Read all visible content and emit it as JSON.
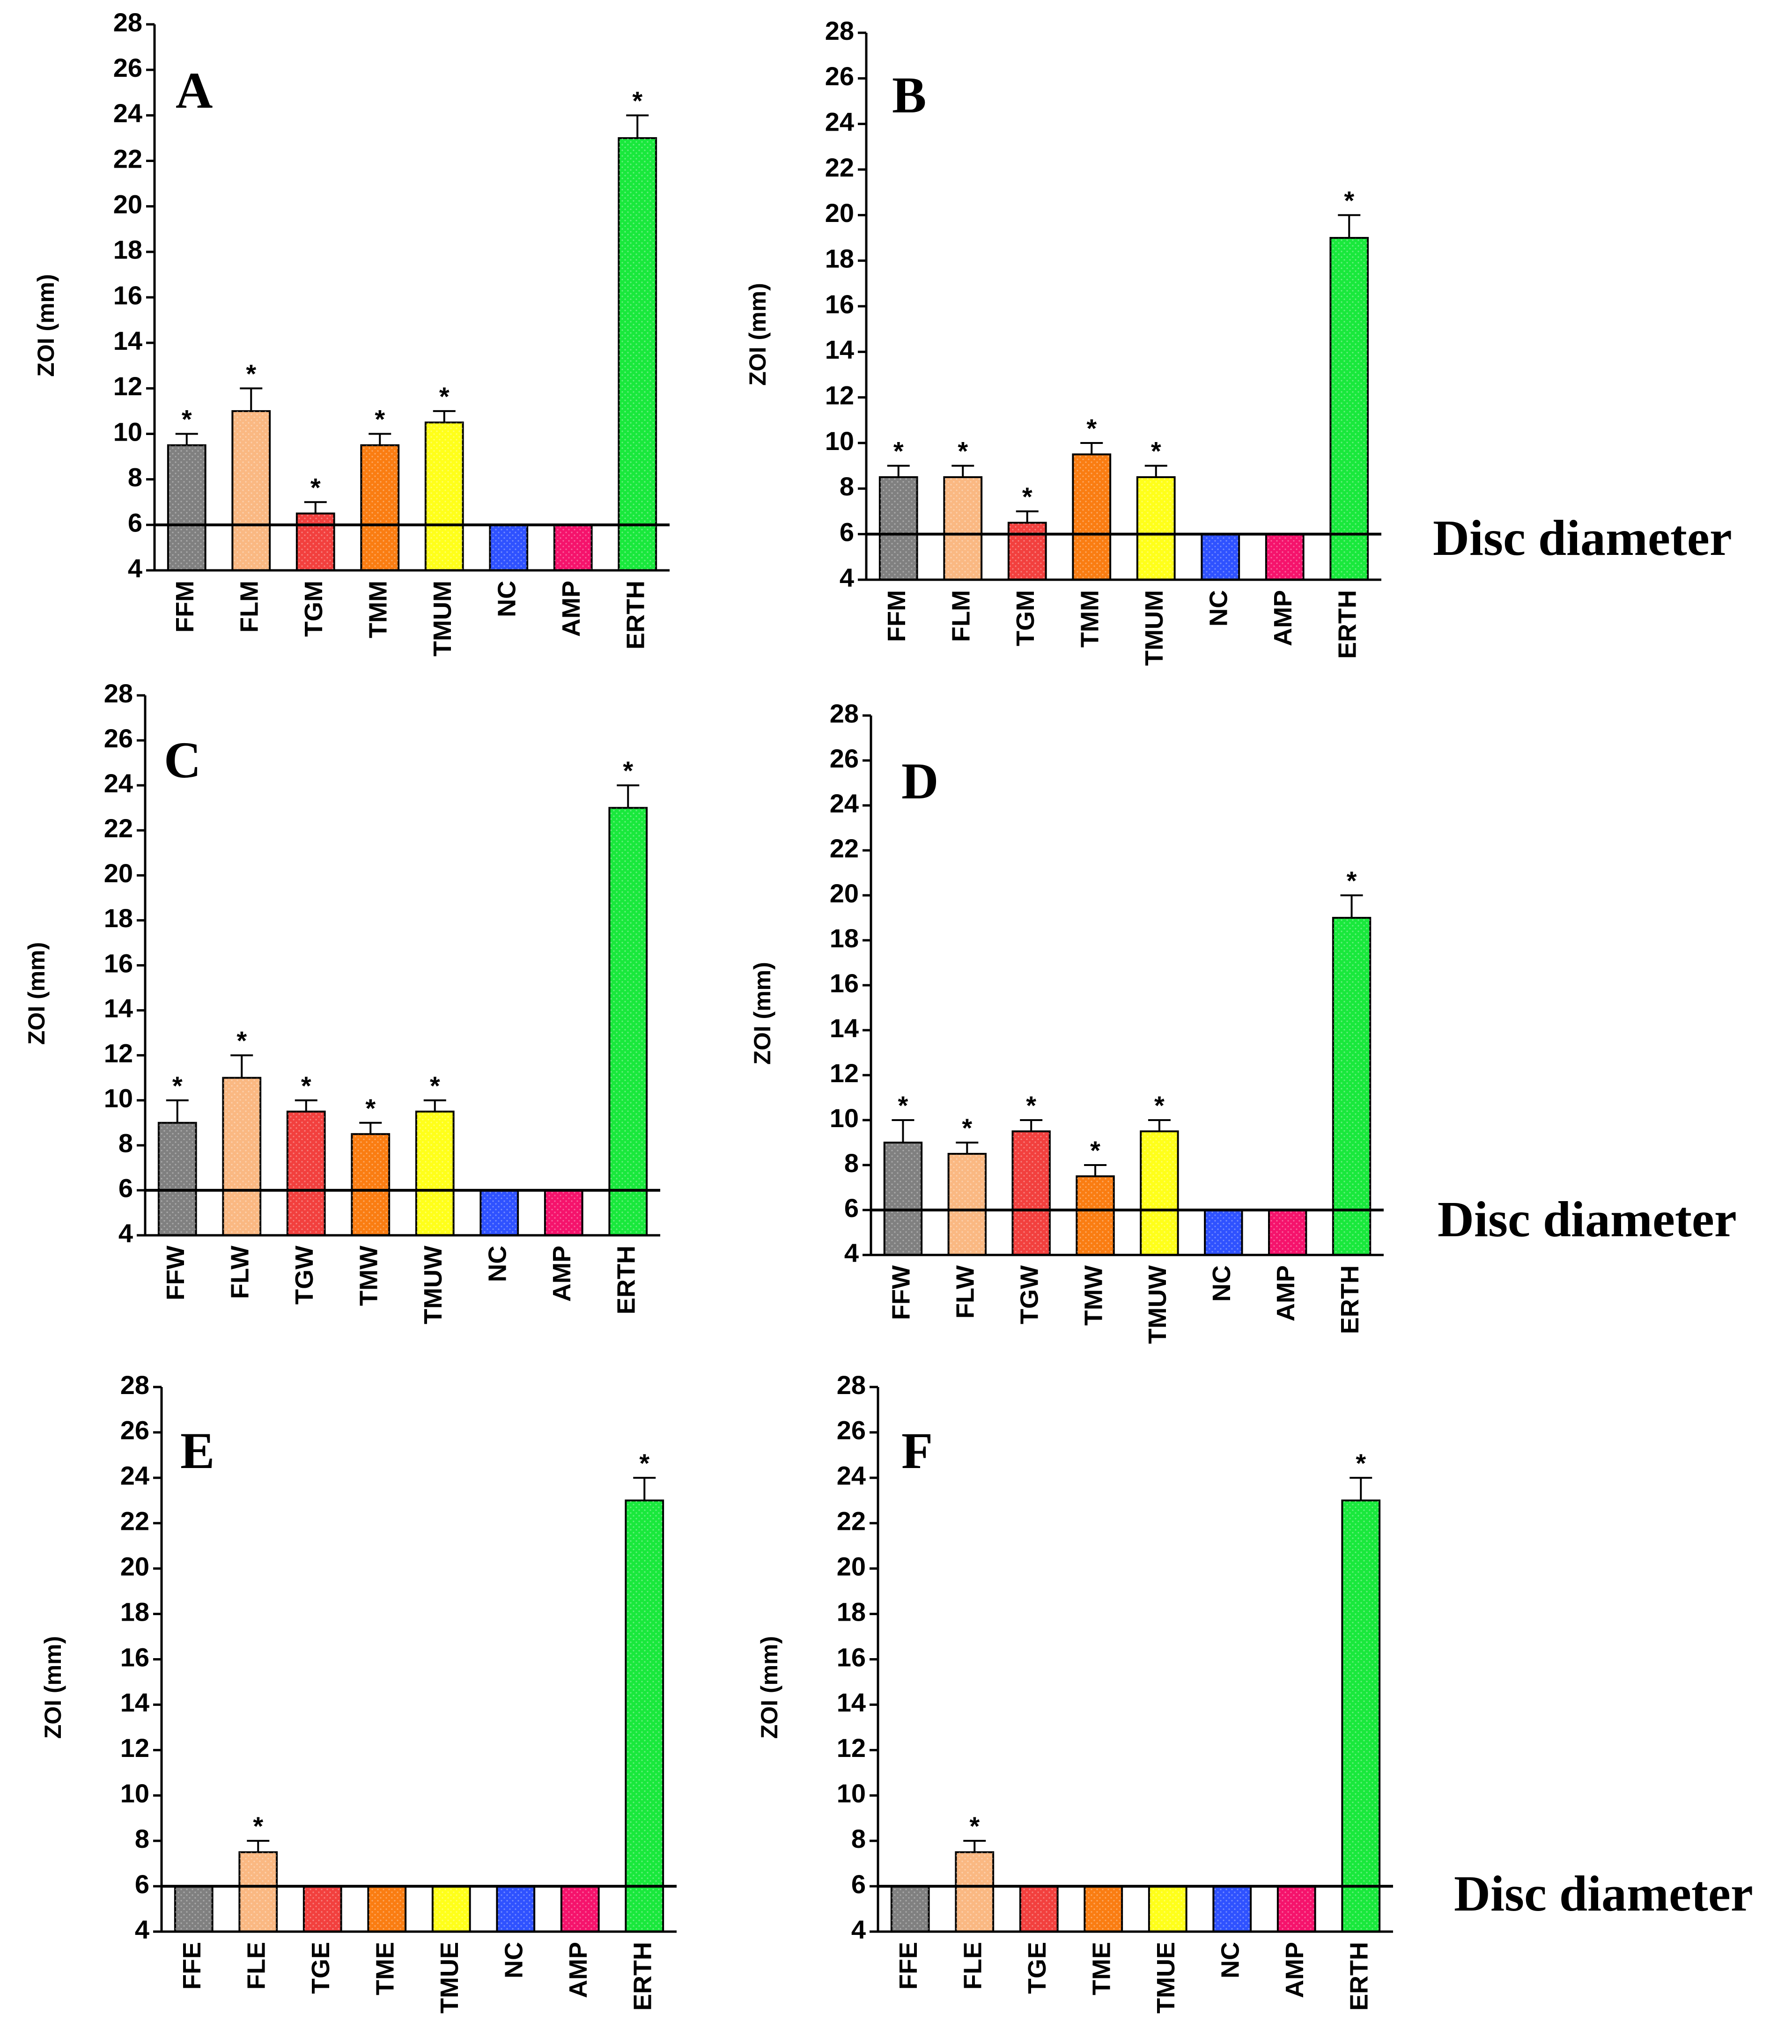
{
  "figure": {
    "disc_label": "Disc diameter"
  },
  "colors": {
    "FF": "#808080",
    "FL": "#FAB882",
    "TG": "#F2403E",
    "TM": "#FA7D12",
    "TMU": "#FFFF1A",
    "NC": "#2F52FF",
    "AMP": "#F5136C",
    "ERTH": "#19E83C"
  },
  "chart_data": [
    {
      "panel": "A",
      "type": "bar",
      "ylabel": "ZOI (mm)",
      "ylim": [
        4,
        28
      ],
      "yticks": [
        "4",
        "6",
        "8",
        "10",
        "12",
        "14",
        "16",
        "18",
        "20",
        "22",
        "24",
        "26",
        "28"
      ],
      "reference_line": 6,
      "show_disc_label": false,
      "categories": [
        "FFM",
        "FLM",
        "TGM",
        "TMM",
        "TMUM",
        "NC",
        "AMP",
        "ERTH"
      ],
      "color_keys": [
        "FF",
        "FL",
        "TG",
        "TM",
        "TMU",
        "NC",
        "AMP",
        "ERTH"
      ],
      "values": [
        9.5,
        11,
        6.5,
        9.5,
        10.5,
        6,
        6,
        23
      ],
      "errors": [
        0.5,
        1,
        0.5,
        0.5,
        0.5,
        0,
        0,
        1
      ],
      "significant": [
        true,
        true,
        true,
        true,
        true,
        false,
        false,
        true
      ],
      "significance_mark": "*"
    },
    {
      "panel": "B",
      "type": "bar",
      "ylabel": "ZOI (mm)",
      "ylim": [
        4,
        28
      ],
      "yticks": [
        "4",
        "6",
        "8",
        "10",
        "12",
        "14",
        "16",
        "18",
        "20",
        "22",
        "24",
        "26",
        "28"
      ],
      "reference_line": 6,
      "show_disc_label": true,
      "categories": [
        "FFM",
        "FLM",
        "TGM",
        "TMM",
        "TMUM",
        "NC",
        "AMP",
        "ERTH"
      ],
      "color_keys": [
        "FF",
        "FL",
        "TG",
        "TM",
        "TMU",
        "NC",
        "AMP",
        "ERTH"
      ],
      "values": [
        8.5,
        8.5,
        6.5,
        9.5,
        8.5,
        6,
        6,
        19
      ],
      "errors": [
        0.5,
        0.5,
        0.5,
        0.5,
        0.5,
        0,
        0,
        1
      ],
      "significant": [
        true,
        true,
        true,
        true,
        true,
        false,
        false,
        true
      ],
      "significance_mark": "*"
    },
    {
      "panel": "C",
      "type": "bar",
      "ylabel": "ZOI (mm)",
      "ylim": [
        4,
        28
      ],
      "yticks": [
        "4",
        "6",
        "8",
        "10",
        "12",
        "14",
        "16",
        "18",
        "20",
        "22",
        "24",
        "26",
        "28"
      ],
      "reference_line": 6,
      "show_disc_label": false,
      "categories": [
        "FFW",
        "FLW",
        "TGW",
        "TMW",
        "TMUW",
        "NC",
        "AMP",
        "ERTH"
      ],
      "color_keys": [
        "FF",
        "FL",
        "TG",
        "TM",
        "TMU",
        "NC",
        "AMP",
        "ERTH"
      ],
      "values": [
        9,
        11,
        9.5,
        8.5,
        9.5,
        6,
        6,
        23
      ],
      "errors": [
        1,
        1,
        0.5,
        0.5,
        0.5,
        0,
        0,
        1
      ],
      "significant": [
        true,
        true,
        true,
        true,
        true,
        false,
        false,
        true
      ],
      "significance_mark": "*"
    },
    {
      "panel": "D",
      "type": "bar",
      "ylabel": "ZOI (mm)",
      "ylim": [
        4,
        28
      ],
      "yticks": [
        "4",
        "6",
        "8",
        "10",
        "12",
        "14",
        "16",
        "18",
        "20",
        "22",
        "24",
        "26",
        "28"
      ],
      "reference_line": 6,
      "show_disc_label": true,
      "categories": [
        "FFW",
        "FLW",
        "TGW",
        "TMW",
        "TMUW",
        "NC",
        "AMP",
        "ERTH"
      ],
      "color_keys": [
        "FF",
        "FL",
        "TG",
        "TM",
        "TMU",
        "NC",
        "AMP",
        "ERTH"
      ],
      "values": [
        9,
        8.5,
        9.5,
        7.5,
        9.5,
        6,
        6,
        19
      ],
      "errors": [
        1,
        0.5,
        0.5,
        0.5,
        0.5,
        0,
        0,
        1
      ],
      "significant": [
        true,
        true,
        true,
        true,
        true,
        false,
        false,
        true
      ],
      "significance_mark": "*"
    },
    {
      "panel": "E",
      "type": "bar",
      "ylabel": "ZOI (mm)",
      "ylim": [
        4,
        28
      ],
      "yticks": [
        "4",
        "6",
        "8",
        "10",
        "12",
        "14",
        "16",
        "18",
        "20",
        "22",
        "24",
        "26",
        "28"
      ],
      "reference_line": 6,
      "show_disc_label": false,
      "categories": [
        "FFE",
        "FLE",
        "TGE",
        "TME",
        "TMUE",
        "NC",
        "AMP",
        "ERTH"
      ],
      "color_keys": [
        "FF",
        "FL",
        "TG",
        "TM",
        "TMU",
        "NC",
        "AMP",
        "ERTH"
      ],
      "values": [
        6,
        7.5,
        6,
        6,
        6,
        6,
        6,
        23
      ],
      "errors": [
        0,
        0.5,
        0,
        0,
        0,
        0,
        0,
        1
      ],
      "significant": [
        false,
        true,
        false,
        false,
        false,
        false,
        false,
        true
      ],
      "significance_mark": "*"
    },
    {
      "panel": "F",
      "type": "bar",
      "ylabel": "ZOI (mm)",
      "ylim": [
        4,
        28
      ],
      "yticks": [
        "4",
        "6",
        "8",
        "10",
        "12",
        "14",
        "16",
        "18",
        "20",
        "22",
        "24",
        "26",
        "28"
      ],
      "reference_line": 6,
      "show_disc_label": true,
      "categories": [
        "FFE",
        "FLE",
        "TGE",
        "TME",
        "TMUE",
        "NC",
        "AMP",
        "ERTH"
      ],
      "color_keys": [
        "FF",
        "FL",
        "TG",
        "TM",
        "TMU",
        "NC",
        "AMP",
        "ERTH"
      ],
      "values": [
        6,
        7.5,
        6,
        6,
        6,
        6,
        6,
        23
      ],
      "errors": [
        0,
        0.5,
        0,
        0,
        0,
        0,
        0,
        1
      ],
      "significant": [
        false,
        true,
        false,
        false,
        false,
        false,
        false,
        true
      ],
      "significance_mark": "*"
    }
  ]
}
